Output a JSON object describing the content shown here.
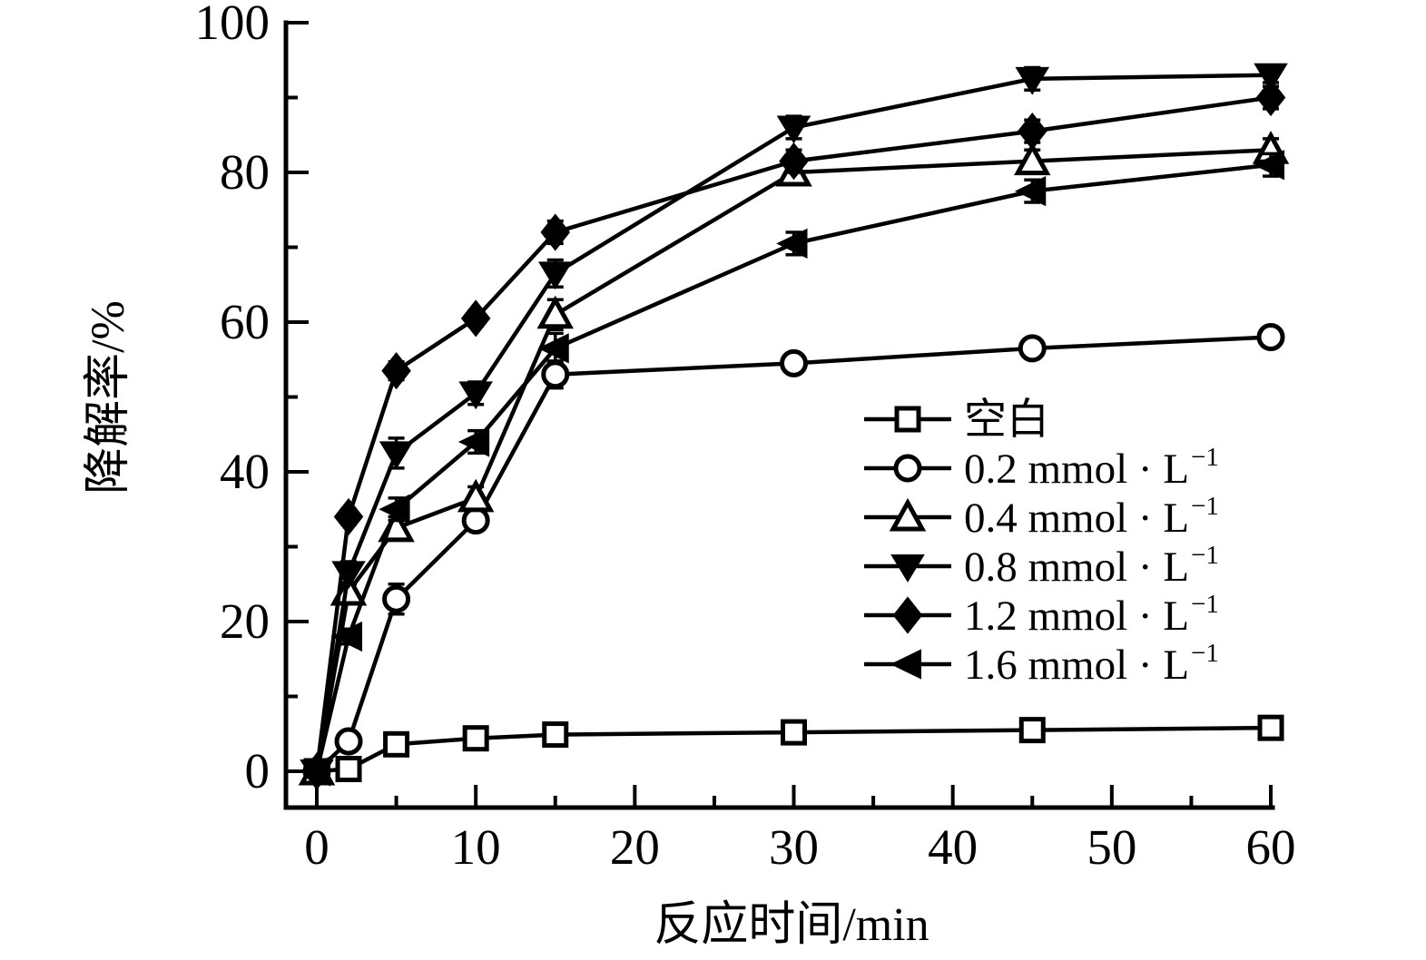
{
  "figure": {
    "background": "#ffffff",
    "ink": "#000000"
  },
  "chart_data": {
    "type": "line",
    "title": "",
    "xlabel": "反应时间/min",
    "ylabel": "降解率/%",
    "xlim": [
      -2,
      60
    ],
    "ylim": [
      -5,
      100
    ],
    "grid": false,
    "legend_position": "inside-right-middle",
    "x": [
      0,
      2,
      5,
      10,
      15,
      30,
      45,
      60
    ],
    "x_major_ticks": [
      0,
      10,
      20,
      30,
      40,
      50,
      60
    ],
    "x_tick_labels": [
      "0",
      "10",
      "20",
      "30",
      "40",
      "50",
      "60"
    ],
    "x_minor_ticks": [
      5,
      15,
      25,
      35,
      45,
      55
    ],
    "y_major_ticks": [
      0,
      20,
      40,
      60,
      80,
      100
    ],
    "y_tick_labels": [
      "0",
      "20",
      "40",
      "60",
      "80",
      "100"
    ],
    "y_minor_ticks": [
      10,
      30,
      50,
      70,
      90
    ],
    "series": [
      {
        "id": "blank",
        "label_main": "空白",
        "label_sup": "",
        "marker": "square-open",
        "values": [
          0,
          0.3,
          3.6,
          4.4,
          4.9,
          5.2,
          5.5,
          5.8
        ],
        "errors": [
          0.3,
          0.4,
          0.5,
          0.5,
          0.5,
          0.5,
          0.6,
          0.6
        ]
      },
      {
        "id": "c0_2",
        "label_main": "0.2 mmol · L",
        "label_sup": "−1",
        "marker": "circle-open",
        "values": [
          0,
          4,
          23,
          33.5,
          53,
          54.5,
          56.5,
          58
        ],
        "errors": [
          0.3,
          0.8,
          2,
          1.2,
          1.8,
          1,
          1,
          1
        ]
      },
      {
        "id": "c0_4",
        "label_main": "0.4 mmol · L",
        "label_sup": "−1",
        "marker": "triangle-up-open",
        "values": [
          0,
          24,
          32.5,
          36.5,
          61,
          80,
          81.5,
          83
        ],
        "errors": [
          0.3,
          1.2,
          1.5,
          1.5,
          2,
          1.2,
          1.5,
          1.5
        ]
      },
      {
        "id": "c0_8",
        "label_main": "0.8 mmol · L",
        "label_sup": "−1",
        "marker": "triangle-down-filled",
        "values": [
          0,
          26.5,
          42.5,
          50.5,
          66.5,
          86,
          92.5,
          93
        ],
        "errors": [
          0.3,
          1.5,
          2,
          1.5,
          1.8,
          1.5,
          1.5,
          1
        ]
      },
      {
        "id": "c1_2",
        "label_main": "1.2  mmol · L",
        "label_sup": "−1",
        "marker": "diamond-filled",
        "values": [
          0,
          34,
          53.5,
          60.5,
          72,
          81.5,
          85.5,
          90
        ],
        "errors": [
          0.3,
          1,
          1.2,
          1,
          1.5,
          1.5,
          1.5,
          1.5
        ]
      },
      {
        "id": "c1_6",
        "label_main": "1.6 mmol · L",
        "label_sup": "−1",
        "marker": "triangle-left-filled",
        "values": [
          0,
          18,
          35,
          44,
          56.5,
          70.5,
          77.5,
          81
        ],
        "errors": [
          0.3,
          1,
          1.5,
          1.5,
          2,
          1.5,
          1.5,
          1.5
        ]
      }
    ]
  }
}
